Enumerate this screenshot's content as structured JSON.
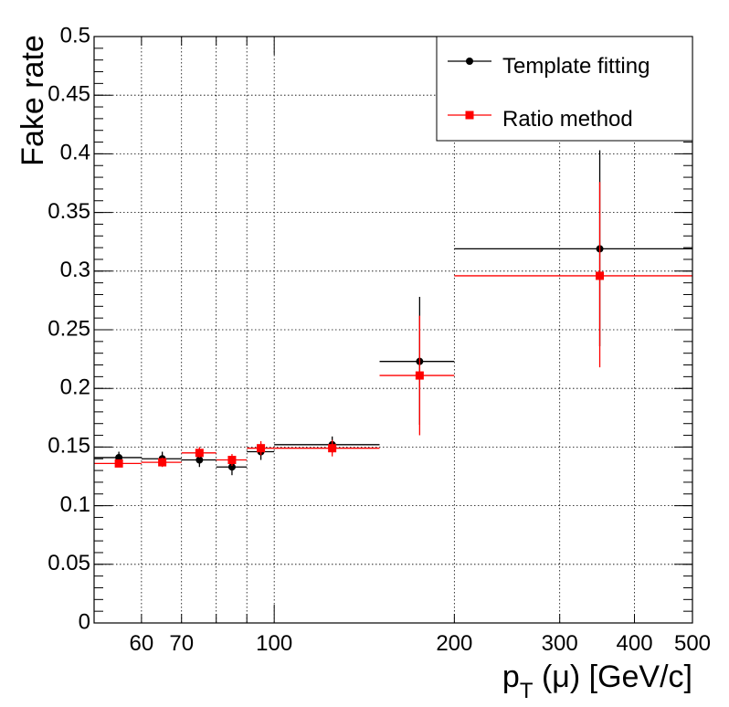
{
  "chart_data": {
    "type": "scatter",
    "xscale": "log",
    "xlim": [
      50,
      500
    ],
    "ylim": [
      0,
      0.5
    ],
    "grid": true,
    "legend_position": "top-right",
    "ylabel": "Fake rate",
    "xlabel": {
      "main": "p",
      "sub": "T",
      "rest": " (μ) [GeV/c]"
    },
    "xtick_labels": [
      {
        "value": 60,
        "label": "60"
      },
      {
        "value": 70,
        "label": "70"
      },
      {
        "value": 100,
        "label": "100"
      },
      {
        "value": 200,
        "label": "200"
      },
      {
        "value": 300,
        "label": "300"
      },
      {
        "value": 400,
        "label": "400"
      },
      {
        "value": 500,
        "label": "500"
      }
    ],
    "ytick_labels": [
      {
        "value": 0,
        "label": "0"
      },
      {
        "value": 0.05,
        "label": "0.05"
      },
      {
        "value": 0.1,
        "label": "0.1"
      },
      {
        "value": 0.15,
        "label": "0.15"
      },
      {
        "value": 0.2,
        "label": "0.2"
      },
      {
        "value": 0.25,
        "label": "0.25"
      },
      {
        "value": 0.3,
        "label": "0.3"
      },
      {
        "value": 0.35,
        "label": "0.35"
      },
      {
        "value": 0.4,
        "label": "0.4"
      },
      {
        "value": 0.45,
        "label": "0.45"
      },
      {
        "value": 0.5,
        "label": "0.5"
      }
    ],
    "series": [
      {
        "name": "Template fitting",
        "color": "#000000",
        "marker": "circle",
        "points": [
          {
            "x": 55,
            "xlo": 50,
            "xhi": 60,
            "y": 0.141,
            "ylo": 0.136,
            "yhi": 0.146
          },
          {
            "x": 65,
            "xlo": 60,
            "xhi": 70,
            "y": 0.14,
            "ylo": 0.134,
            "yhi": 0.146
          },
          {
            "x": 75,
            "xlo": 70,
            "xhi": 80,
            "y": 0.139,
            "ylo": 0.133,
            "yhi": 0.145
          },
          {
            "x": 85,
            "xlo": 80,
            "xhi": 90,
            "y": 0.133,
            "ylo": 0.126,
            "yhi": 0.14
          },
          {
            "x": 95,
            "xlo": 90,
            "xhi": 100,
            "y": 0.146,
            "ylo": 0.139,
            "yhi": 0.153
          },
          {
            "x": 125,
            "xlo": 100,
            "xhi": 150,
            "y": 0.152,
            "ylo": 0.145,
            "yhi": 0.159
          },
          {
            "x": 175,
            "xlo": 150,
            "xhi": 200,
            "y": 0.223,
            "ylo": 0.169,
            "yhi": 0.278
          },
          {
            "x": 350,
            "xlo": 200,
            "xhi": 500,
            "y": 0.319,
            "ylo": 0.236,
            "yhi": 0.403
          }
        ]
      },
      {
        "name": "Ratio method",
        "color": "#ff0000",
        "marker": "square",
        "points": [
          {
            "x": 55,
            "xlo": 50,
            "xhi": 60,
            "y": 0.136,
            "ylo": 0.133,
            "yhi": 0.139
          },
          {
            "x": 65,
            "xlo": 60,
            "xhi": 70,
            "y": 0.137,
            "ylo": 0.133,
            "yhi": 0.141
          },
          {
            "x": 75,
            "xlo": 70,
            "xhi": 80,
            "y": 0.145,
            "ylo": 0.141,
            "yhi": 0.15
          },
          {
            "x": 85,
            "xlo": 80,
            "xhi": 90,
            "y": 0.139,
            "ylo": 0.134,
            "yhi": 0.144
          },
          {
            "x": 95,
            "xlo": 90,
            "xhi": 100,
            "y": 0.149,
            "ylo": 0.143,
            "yhi": 0.155
          },
          {
            "x": 125,
            "xlo": 100,
            "xhi": 150,
            "y": 0.149,
            "ylo": 0.142,
            "yhi": 0.156
          },
          {
            "x": 175,
            "xlo": 150,
            "xhi": 200,
            "y": 0.211,
            "ylo": 0.16,
            "yhi": 0.262
          },
          {
            "x": 350,
            "xlo": 200,
            "xhi": 500,
            "y": 0.296,
            "ylo": 0.218,
            "yhi": 0.376
          }
        ]
      }
    ]
  }
}
